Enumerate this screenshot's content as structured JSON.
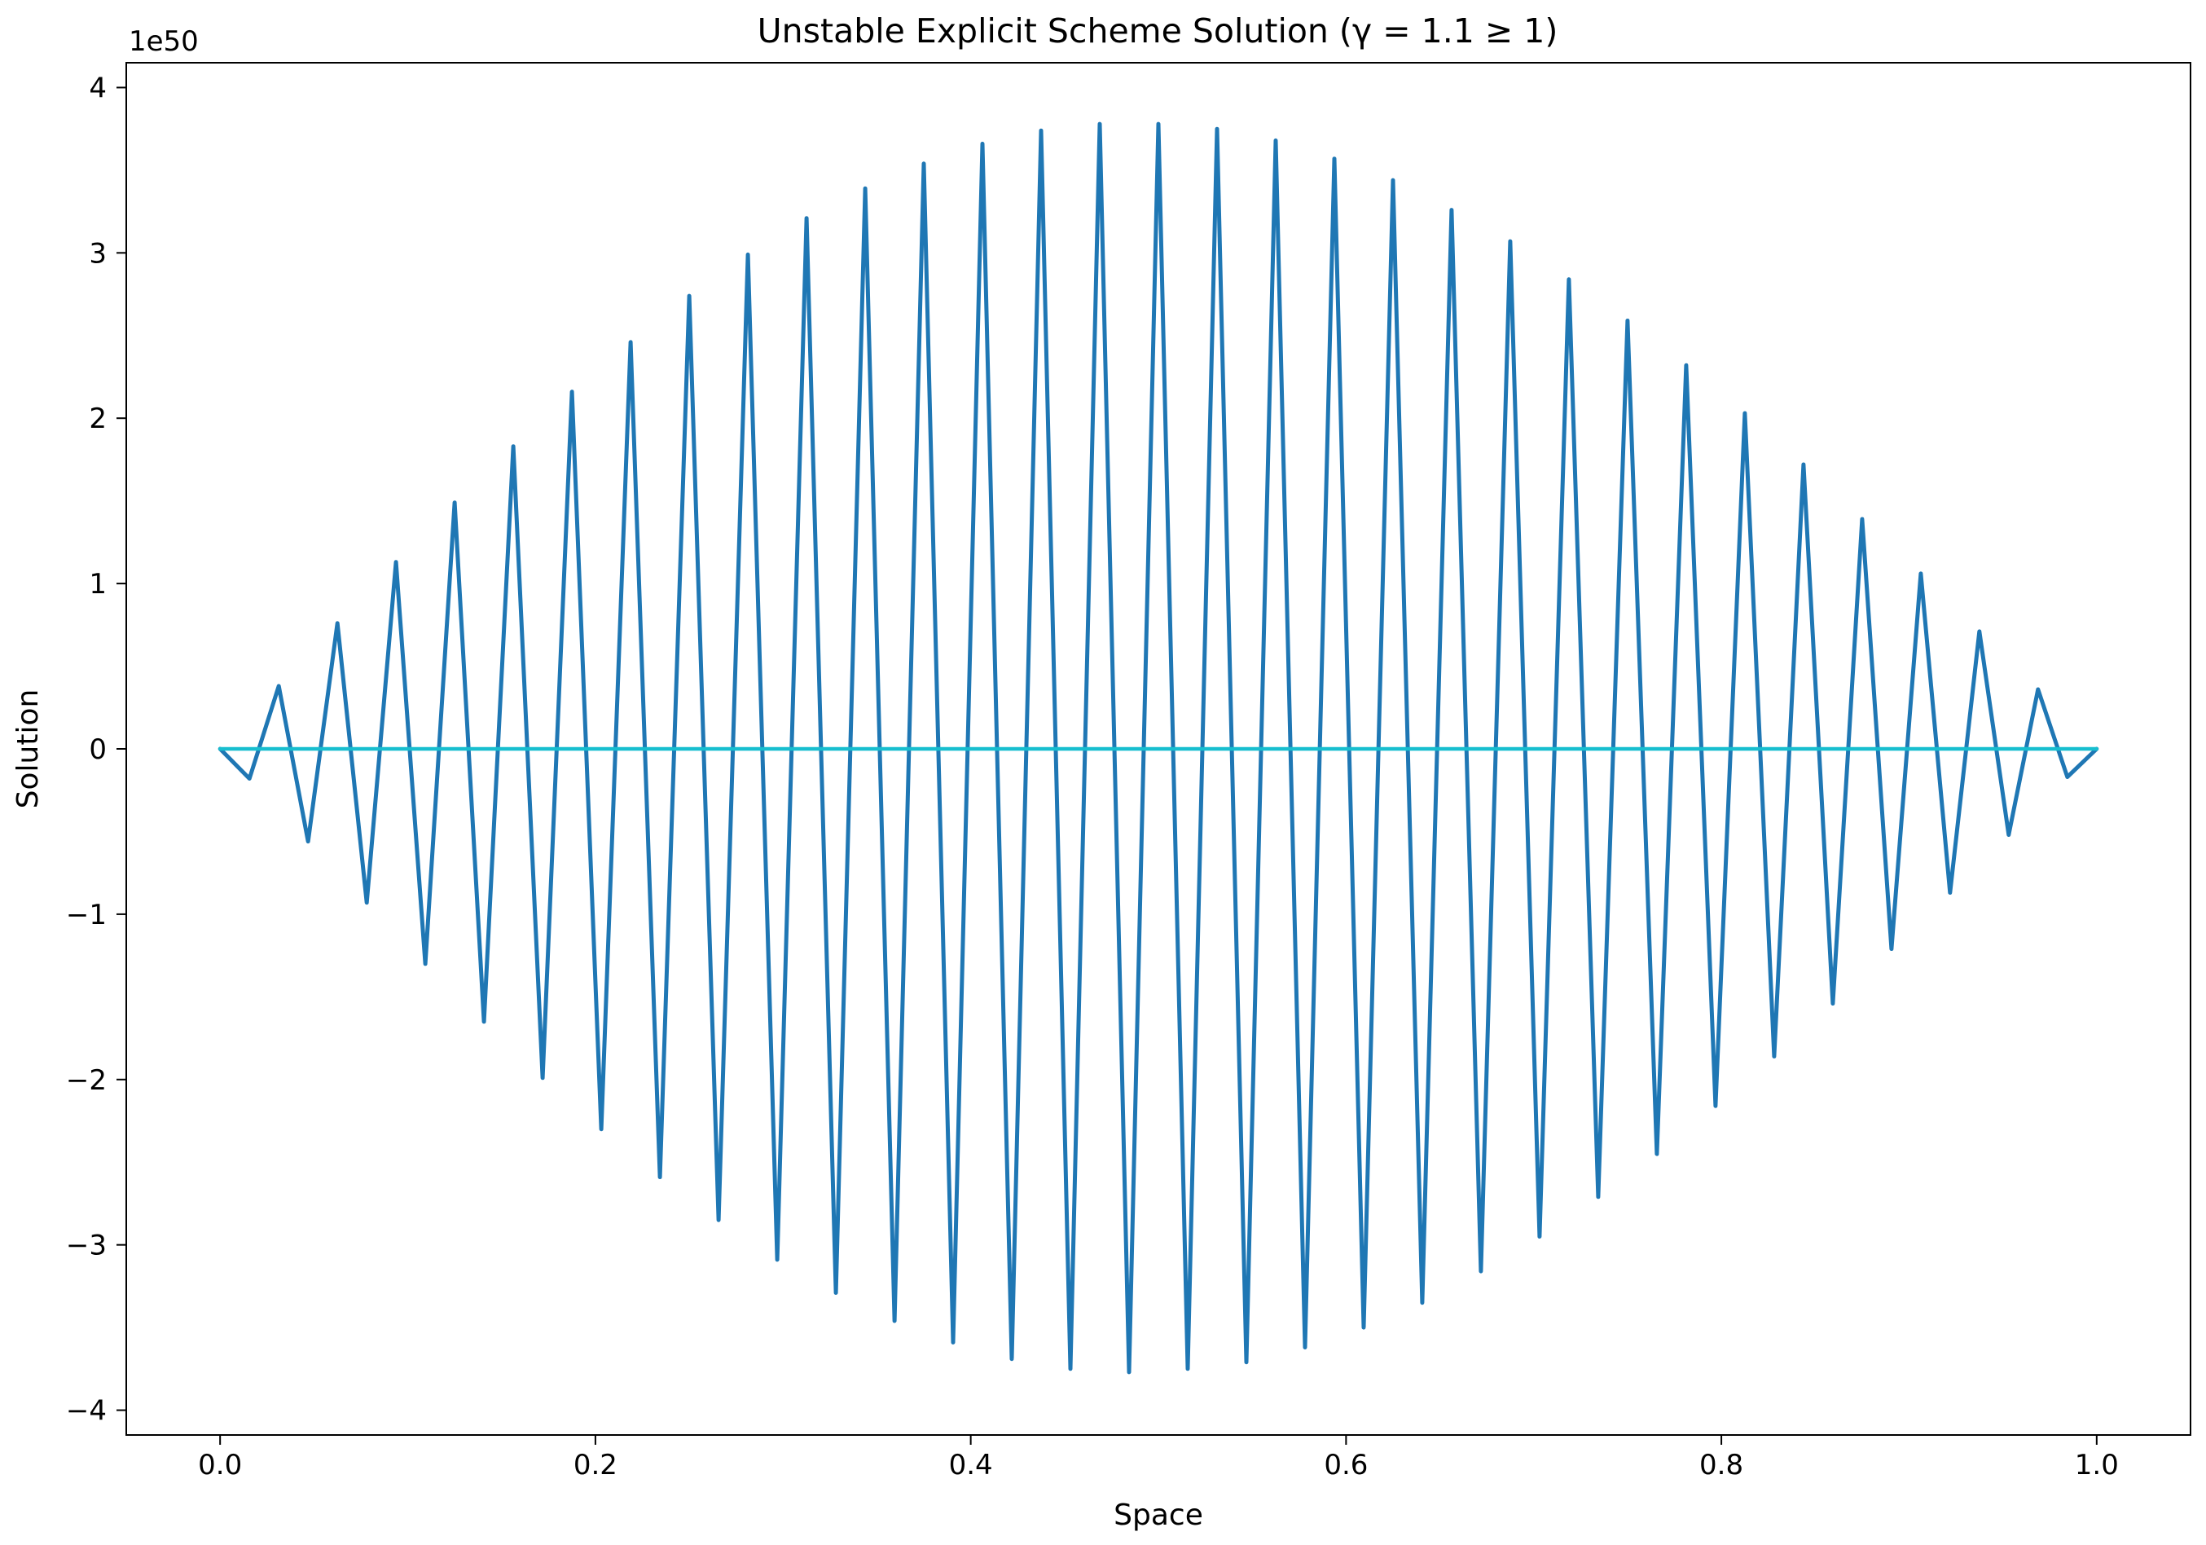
{
  "chart_data": {
    "type": "line",
    "title": "Unstable Explicit Scheme Solution (γ = 1.1 ≥ 1)",
    "xlabel": "Space",
    "ylabel": "Solution",
    "y_offset_label": "1e50",
    "xlim": [
      -0.05,
      1.05
    ],
    "ylim": [
      -4.15,
      4.15
    ],
    "x_ticks": [
      0.0,
      0.2,
      0.4,
      0.6,
      0.8,
      1.0
    ],
    "x_tick_labels": [
      "0.0",
      "0.2",
      "0.4",
      "0.6",
      "0.8",
      "1.0"
    ],
    "y_ticks": [
      -4,
      -3,
      -2,
      -1,
      0,
      1,
      2,
      3,
      4
    ],
    "y_tick_labels": [
      "−4",
      "−3",
      "−2",
      "−1",
      "0",
      "1",
      "2",
      "3",
      "4"
    ],
    "grid": false,
    "legend": "none",
    "colors": {
      "main_series": "#1f77b4",
      "flat_series": "#17becf",
      "axes": "#000000"
    },
    "series": [
      {
        "x": [
          0.0,
          0.015625,
          0.03125,
          0.046875,
          0.0625,
          0.078125,
          0.09375,
          0.109375,
          0.125,
          0.140625,
          0.15625,
          0.171875,
          0.1875,
          0.203125,
          0.21875,
          0.234375,
          0.25,
          0.265625,
          0.28125,
          0.296875,
          0.3125,
          0.328125,
          0.34375,
          0.359375,
          0.375,
          0.390625,
          0.40625,
          0.421875,
          0.4375,
          0.453125,
          0.46875,
          0.484375,
          0.5,
          0.515625,
          0.53125,
          0.546875,
          0.5625,
          0.578125,
          0.59375,
          0.609375,
          0.625,
          0.640625,
          0.65625,
          0.671875,
          0.6875,
          0.703125,
          0.71875,
          0.734375,
          0.75,
          0.765625,
          0.78125,
          0.796875,
          0.8125,
          0.828125,
          0.84375,
          0.859375,
          0.875,
          0.890625,
          0.90625,
          0.921875,
          0.9375,
          0.953125,
          0.96875,
          0.984375,
          1.0
        ],
        "values": [
          0.0,
          -0.18,
          0.38,
          -0.56,
          0.76,
          -0.93,
          1.13,
          -1.3,
          1.49,
          -1.65,
          1.83,
          -1.99,
          2.16,
          -2.3,
          2.46,
          -2.59,
          2.74,
          -2.85,
          2.99,
          -3.09,
          3.21,
          -3.29,
          3.39,
          -3.46,
          3.54,
          -3.59,
          3.66,
          -3.69,
          3.74,
          -3.75,
          3.78,
          -3.77,
          3.78,
          -3.75,
          3.75,
          -3.71,
          3.68,
          -3.62,
          3.57,
          -3.5,
          3.44,
          -3.35,
          3.26,
          -3.16,
          3.07,
          -2.95,
          2.84,
          -2.71,
          2.59,
          -2.45,
          2.32,
          -2.16,
          2.03,
          -1.86,
          1.72,
          -1.54,
          1.39,
          -1.21,
          1.06,
          -0.87,
          0.71,
          -0.52,
          0.36,
          -0.17,
          0.0
        ]
      },
      {
        "x": [
          0.0,
          1.0
        ],
        "values": [
          0.0,
          0.0
        ]
      }
    ]
  }
}
